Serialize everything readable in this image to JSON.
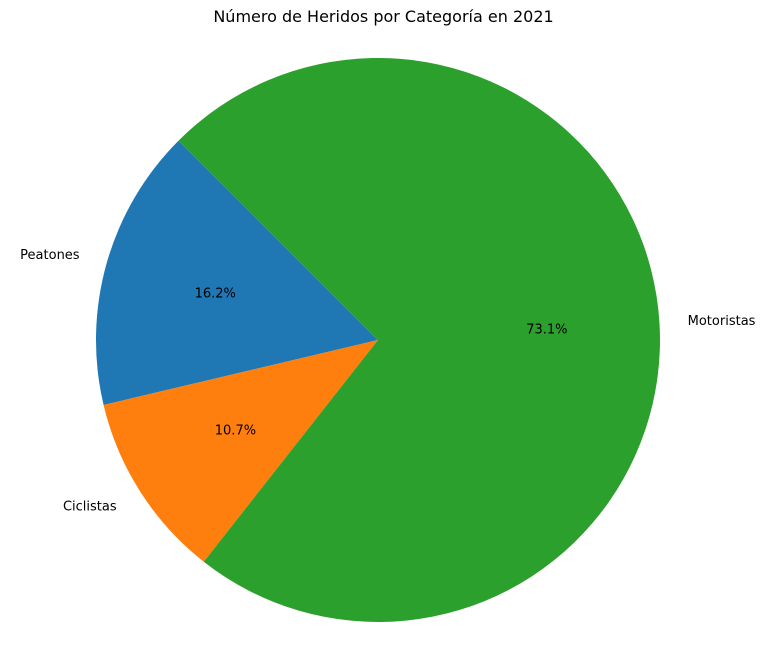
{
  "chart_data": {
    "type": "pie",
    "title": "Número de Heridos por Categoría en 2021",
    "categories": [
      "Peatones",
      "Ciclistas",
      "Motoristas"
    ],
    "values": [
      16.2,
      10.7,
      73.1
    ],
    "percent_labels": [
      "16.2%",
      "10.7%",
      "73.1%"
    ],
    "colors": [
      "#1f77b4",
      "#ff7f0e",
      "#2ca02c"
    ],
    "start_angle_deg": 135,
    "direction": "counterclockwise",
    "legend": "none"
  }
}
